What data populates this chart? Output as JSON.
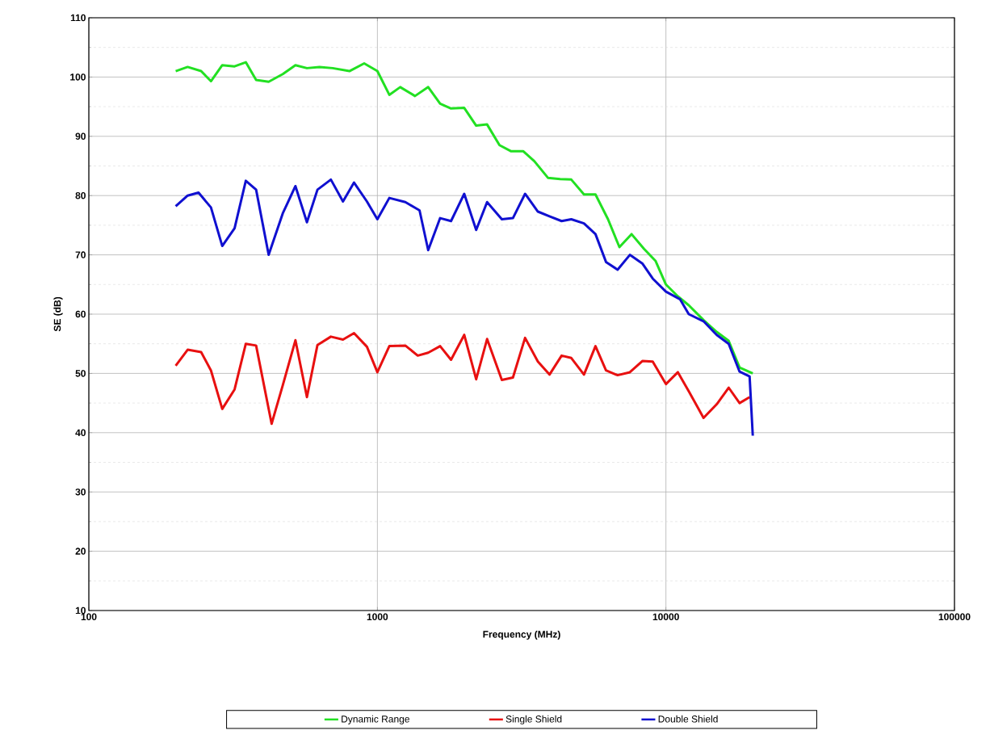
{
  "chart_data": {
    "type": "line",
    "xlabel": "Frequency (MHz)",
    "ylabel": "SE (dB)",
    "log": "x",
    "grid": true,
    "legend": "bottom",
    "marker": "none",
    "line_style": "solid",
    "xlim": [
      100,
      100000
    ],
    "xticks": [
      100,
      1000,
      10000,
      100000
    ],
    "ylim": [
      10,
      110
    ],
    "yticks": [
      10,
      20,
      30,
      40,
      50,
      60,
      70,
      80,
      90,
      100,
      110
    ],
    "series": [
      {
        "name": "Dynamic Range",
        "color": "#22e022",
        "x": [
          200,
          220,
          245,
          265,
          290,
          320,
          350,
          380,
          420,
          470,
          520,
          570,
          630,
          700,
          800,
          900,
          1000,
          1100,
          1200,
          1350,
          1500,
          1650,
          1800,
          2000,
          2200,
          2400,
          2650,
          2900,
          3200,
          3500,
          3900,
          4300,
          4700,
          5200,
          5700,
          6300,
          6900,
          7600,
          8400,
          9200,
          10000,
          11000,
          12000,
          13500,
          15000,
          16500,
          18000,
          20000
        ],
        "values": [
          101,
          101.7,
          101,
          99.3,
          102,
          101.8,
          102.5,
          99.5,
          99.2,
          100.5,
          102,
          101.5,
          101.7,
          101.5,
          101,
          102.3,
          101,
          97,
          98.3,
          96.8,
          98.3,
          95.5,
          94.7,
          94.8,
          91.8,
          92,
          88.5,
          87.5,
          87.5,
          85.8,
          83,
          82.8,
          82.7,
          80.2,
          80.2,
          76,
          71.3,
          73.5,
          71,
          69,
          65,
          63,
          61.5,
          59,
          57,
          55.5,
          51,
          50
        ]
      },
      {
        "name": "Single Shield",
        "color": "#e81010",
        "x": [
          200,
          220,
          245,
          265,
          290,
          320,
          350,
          380,
          430,
          470,
          520,
          570,
          620,
          690,
          760,
          830,
          920,
          1000,
          1100,
          1250,
          1380,
          1500,
          1650,
          1800,
          2000,
          2200,
          2400,
          2700,
          2950,
          3250,
          3600,
          3950,
          4350,
          4700,
          5200,
          5700,
          6200,
          6800,
          7500,
          8300,
          9000,
          10000,
          11000,
          12000,
          13500,
          15000,
          16500,
          18000,
          19500
        ],
        "values": [
          51.3,
          54,
          53.6,
          50.5,
          44,
          47.3,
          55,
          54.7,
          41.5,
          48,
          55.6,
          46,
          54.8,
          56.2,
          55.7,
          56.8,
          54.5,
          50.2,
          54.6,
          54.7,
          53,
          53.5,
          54.6,
          52.3,
          56.5,
          49,
          55.8,
          48.9,
          49.3,
          56,
          52,
          49.8,
          53,
          52.6,
          49.8,
          54.6,
          50.5,
          49.7,
          50.2,
          52.1,
          52,
          48.2,
          50.2,
          47,
          42.5,
          44.8,
          47.6,
          45,
          46
        ]
      },
      {
        "name": "Double Shield",
        "color": "#1010d0",
        "x": [
          200,
          220,
          240,
          265,
          290,
          320,
          350,
          380,
          420,
          470,
          520,
          570,
          620,
          690,
          760,
          830,
          920,
          1000,
          1100,
          1250,
          1400,
          1500,
          1650,
          1800,
          2000,
          2200,
          2400,
          2700,
          2950,
          3250,
          3600,
          3950,
          4350,
          4700,
          5200,
          5700,
          6200,
          6800,
          7500,
          8300,
          9000,
          10000,
          11200,
          12000,
          13500,
          15000,
          16500,
          18000,
          19500,
          20000
        ],
        "values": [
          78.2,
          80,
          80.5,
          78,
          71.5,
          74.5,
          82.5,
          81,
          70,
          77,
          81.6,
          75.5,
          81,
          82.7,
          79,
          82.2,
          79,
          76,
          79.6,
          78.9,
          77.5,
          70.8,
          76.2,
          75.7,
          80.3,
          74.2,
          78.9,
          76,
          76.2,
          80.3,
          77.3,
          76.5,
          75.7,
          76,
          75.3,
          73.5,
          68.8,
          67.5,
          70,
          68.5,
          66,
          63.8,
          62.5,
          60,
          58.8,
          56.5,
          55,
          50.3,
          49.5,
          39.5
        ]
      }
    ]
  }
}
